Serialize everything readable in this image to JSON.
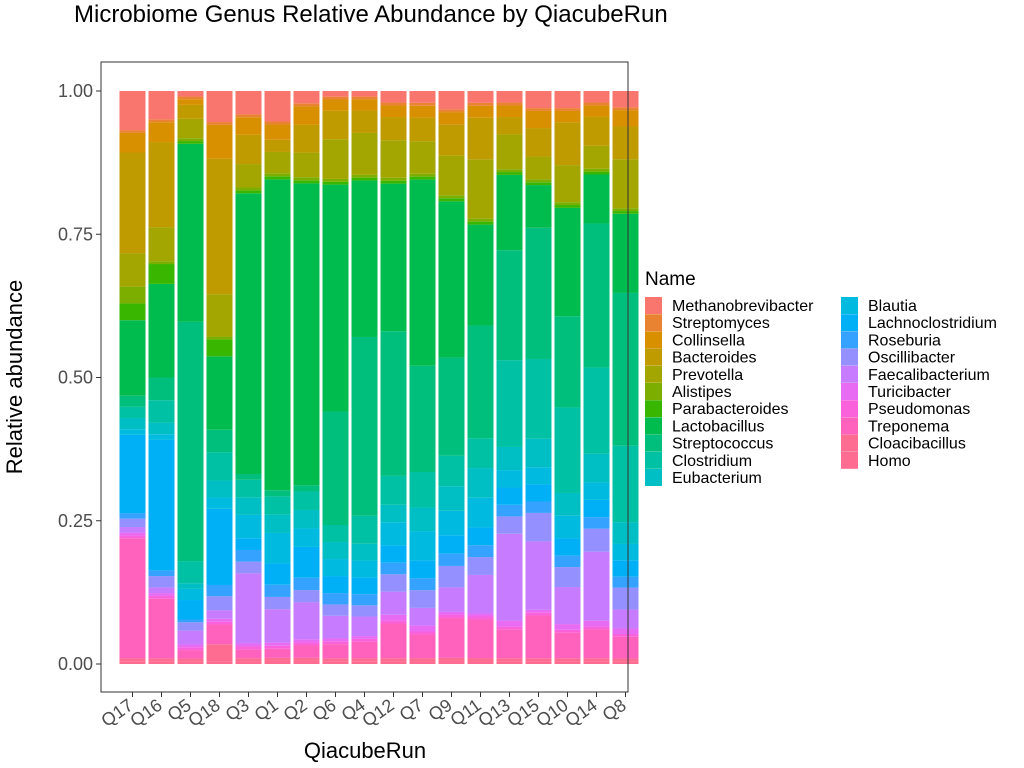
{
  "chart_data": {
    "type": "bar",
    "stacked": true,
    "title": "Microbiome Genus Relative Abundance by QiacubeRun",
    "xlabel": "QiacubeRun",
    "ylabel": "Relative abundance",
    "ylim": [
      0,
      1
    ],
    "yticks": [
      "0.00",
      "0.25",
      "0.50",
      "0.75",
      "1.00"
    ],
    "grid": false,
    "legend": {
      "title": "Name",
      "position": "right"
    },
    "categories": [
      "Q17",
      "Q16",
      "Q5",
      "Q18",
      "Q3",
      "Q1",
      "Q2",
      "Q6",
      "Q4",
      "Q12",
      "Q7",
      "Q9",
      "Q11",
      "Q13",
      "Q15",
      "Q10",
      "Q14",
      "Q8"
    ],
    "series": [
      {
        "name": "Methanobrevibacter",
        "color": "#F8766D",
        "values": [
          0.07,
          0.05,
          0.01,
          0.055,
          0.04,
          0.05,
          0.02,
          0.01,
          0.01,
          0.02,
          0.02,
          0.03,
          0.02,
          0.02,
          0.03,
          0.03,
          0.02,
          0.03
        ]
      },
      {
        "name": "Streptomyces",
        "color": "#EA8331",
        "values": [
          0.005,
          0.005,
          0.005,
          0.005,
          0.005,
          0.005,
          0.005,
          0.005,
          0.005,
          0.005,
          0.005,
          0.005,
          0.005,
          0.005,
          0.005,
          0.005,
          0.005,
          0.005
        ]
      },
      {
        "name": "Collinsella",
        "color": "#D89000",
        "values": [
          0.035,
          0.035,
          0.01,
          0.06,
          0.03,
          0.025,
          0.03,
          0.02,
          0.02,
          0.02,
          0.02,
          0.02,
          0.02,
          0.02,
          0.03,
          0.02,
          0.02,
          0.03
        ]
      },
      {
        "name": "Bacteroides",
        "color": "#C09B00",
        "values": [
          0.18,
          0.15,
          0.025,
          0.24,
          0.05,
          0.02,
          0.045,
          0.05,
          0.04,
          0.04,
          0.04,
          0.05,
          0.07,
          0.03,
          0.05,
          0.075,
          0.05,
          0.06
        ]
      },
      {
        "name": "Prevotella",
        "color": "#A3A500",
        "values": [
          0.06,
          0.06,
          0.035,
          0.075,
          0.04,
          0.035,
          0.04,
          0.07,
          0.075,
          0.065,
          0.055,
          0.065,
          0.1,
          0.06,
          0.04,
          0.065,
          0.04,
          0.09
        ]
      },
      {
        "name": "Alistipes",
        "color": "#7CAE00",
        "values": [
          0.03,
          0.005,
          0.005,
          0.005,
          0.005,
          0.005,
          0.005,
          0.005,
          0.005,
          0.005,
          0.005,
          0.005,
          0.005,
          0.005,
          0.005,
          0.005,
          0.005,
          0.005
        ]
      },
      {
        "name": "Parabacteroides",
        "color": "#39B600",
        "values": [
          0.03,
          0.035,
          0.005,
          0.03,
          0.005,
          0.005,
          0.005,
          0.005,
          0.005,
          0.005,
          0.005,
          0.005,
          0.005,
          0.005,
          0.005,
          0.005,
          0.005,
          0.005
        ]
      },
      {
        "name": "Lactobacillus",
        "color": "#00BB4E",
        "values": [
          0.135,
          0.165,
          0.32,
          0.13,
          0.48,
          0.51,
          0.49,
          0.4,
          0.28,
          0.255,
          0.315,
          0.255,
          0.17,
          0.13,
          0.075,
          0.19,
          0.085,
          0.145
        ]
      },
      {
        "name": "Streptococcus",
        "color": "#00BF7D",
        "values": [
          0.02,
          0.04,
          0.43,
          0.04,
          0.01,
          0.01,
          0.01,
          0.2,
          0.32,
          0.25,
          0.18,
          0.16,
          0.19,
          0.19,
          0.23,
          0.16,
          0.25,
          0.28
        ]
      },
      {
        "name": "Clostridium",
        "color": "#00C1A3",
        "values": [
          0.02,
          0.04,
          0.04,
          0.05,
          0.03,
          0.03,
          0.03,
          0.03,
          0.05,
          0.05,
          0.06,
          0.05,
          0.05,
          0.15,
          0.14,
          0.15,
          0.15,
          0.14
        ]
      },
      {
        "name": "Eubacterium",
        "color": "#00BFC4",
        "values": [
          0.02,
          0.02,
          0.01,
          0.03,
          0.03,
          0.03,
          0.03,
          0.03,
          0.03,
          0.03,
          0.04,
          0.04,
          0.05,
          0.04,
          0.05,
          0.04,
          0.05,
          0.04
        ]
      },
      {
        "name": "Blautia",
        "color": "#00BAE0",
        "values": [
          0.01,
          0.01,
          0.02,
          0.02,
          0.04,
          0.05,
          0.03,
          0.03,
          0.03,
          0.04,
          0.05,
          0.04,
          0.05,
          0.03,
          0.03,
          0.04,
          0.03,
          0.03
        ]
      },
      {
        "name": "Lachnoclostridium",
        "color": "#00B0F6",
        "values": [
          0.14,
          0.23,
          0.035,
          0.135,
          0.02,
          0.035,
          0.05,
          0.03,
          0.03,
          0.03,
          0.03,
          0.03,
          0.03,
          0.03,
          0.03,
          0.03,
          0.03,
          0.03
        ]
      },
      {
        "name": "Roseburia",
        "color": "#35A2FF",
        "values": [
          0.01,
          0.01,
          0.005,
          0.02,
          0.02,
          0.02,
          0.02,
          0.02,
          0.02,
          0.02,
          0.02,
          0.02,
          0.02,
          0.02,
          0.02,
          0.02,
          0.02,
          0.02
        ]
      },
      {
        "name": "Oscillibacter",
        "color": "#9590FF",
        "values": [
          0.015,
          0.02,
          0.015,
          0.025,
          0.02,
          0.02,
          0.02,
          0.02,
          0.02,
          0.03,
          0.03,
          0.035,
          0.03,
          0.03,
          0.05,
          0.035,
          0.04,
          0.04
        ]
      },
      {
        "name": "Faecalibacterium",
        "color": "#C77CFF",
        "values": [
          0.01,
          0.01,
          0.025,
          0.015,
          0.12,
          0.055,
          0.06,
          0.04,
          0.035,
          0.04,
          0.03,
          0.04,
          0.065,
          0.15,
          0.12,
          0.065,
          0.12,
          0.035
        ]
      },
      {
        "name": "Turicibacter",
        "color": "#E76BF3",
        "values": [
          0.005,
          0.005,
          0.005,
          0.005,
          0.005,
          0.005,
          0.005,
          0.005,
          0.005,
          0.01,
          0.01,
          0.005,
          0.005,
          0.01,
          0.005,
          0.01,
          0.01,
          0.01
        ]
      },
      {
        "name": "Pseudomonas",
        "color": "#FA62DB",
        "values": [
          0.005,
          0.005,
          0.005,
          0.005,
          0.005,
          0.005,
          0.005,
          0.005,
          0.005,
          0.005,
          0.005,
          0.005,
          0.005,
          0.005,
          0.005,
          0.005,
          0.005,
          0.005
        ]
      },
      {
        "name": "Treponema",
        "color": "#FF62BC",
        "values": [
          0.215,
          0.105,
          0.015,
          0.035,
          0.015,
          0.015,
          0.02,
          0.025,
          0.03,
          0.06,
          0.04,
          0.065,
          0.065,
          0.05,
          0.075,
          0.045,
          0.05,
          0.04
        ]
      },
      {
        "name": "Cloacibacillus",
        "color": "#FF6C91",
        "values": [
          0.005,
          0.005,
          0.005,
          0.03,
          0.005,
          0.005,
          0.005,
          0.005,
          0.005,
          0.005,
          0.005,
          0.005,
          0.005,
          0.005,
          0.005,
          0.005,
          0.005,
          0.005
        ]
      },
      {
        "name": "Homo",
        "color": "#FF6C91",
        "values": [
          0.005,
          0.005,
          0.005,
          0.005,
          0.005,
          0.005,
          0.005,
          0.005,
          0.005,
          0.005,
          0.005,
          0.005,
          0.005,
          0.005,
          0.005,
          0.005,
          0.005,
          0.005
        ]
      }
    ]
  }
}
